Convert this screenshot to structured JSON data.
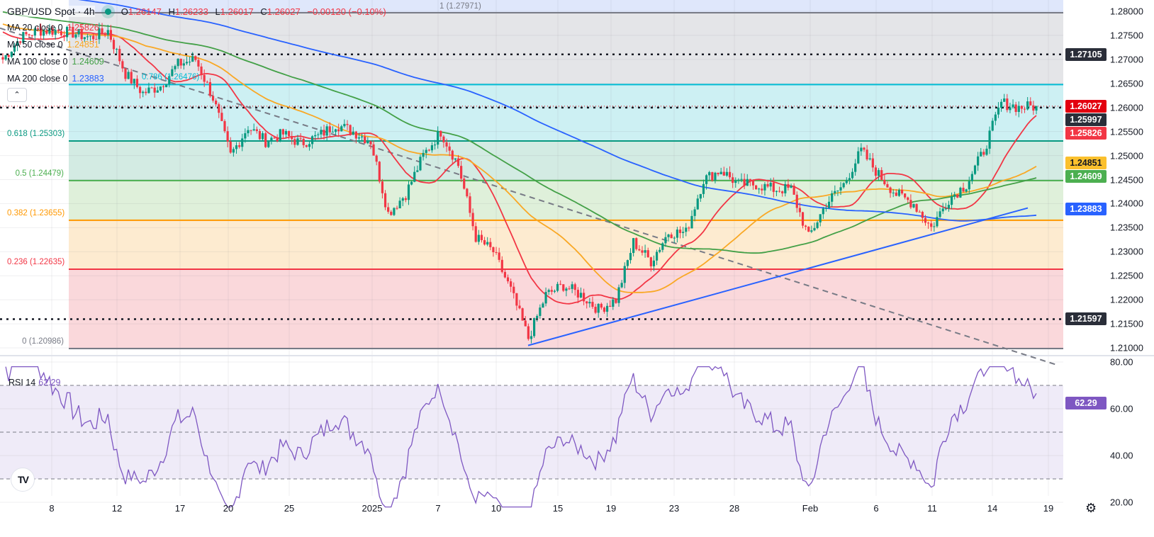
{
  "header": {
    "symbol": "GBP/USD Spot · 4h",
    "open": "O",
    "open_value": "1.26147",
    "high": "H",
    "high_value": "1.26233",
    "low": "L",
    "low_value": "1.26017",
    "close": "C",
    "close_value": "1.26027",
    "change": "−0.00120 (−0.10%)",
    "status_color": "#089981"
  },
  "moving_averages": [
    {
      "label": "MA 20 close 0",
      "value": "1.25826",
      "color": "#f23645"
    },
    {
      "label": "MA 50 close 0",
      "value": "1.24851",
      "color": "#f9a825"
    },
    {
      "label": "MA 100 close 0",
      "value": "1.24609",
      "color": "#43a047"
    },
    {
      "label": "MA 200 close 0",
      "value": "1.23883",
      "color": "#2962ff"
    }
  ],
  "fibonacci": [
    {
      "label": "1 (1.27971)",
      "price": 1.27971,
      "color": "#787b86"
    },
    {
      "label": "0.786 (1.26476)",
      "price": 1.26476,
      "color": "#00bcd4"
    },
    {
      "label": "0.618 (1.25303)",
      "price": 1.25303,
      "color": "#089981"
    },
    {
      "label": "0.5 (1.24479)",
      "price": 1.24479,
      "color": "#4caf50"
    },
    {
      "label": "0.382 (1.23655)",
      "price": 1.23655,
      "color": "#ff9800"
    },
    {
      "label": "0.236 (1.22635)",
      "price": 1.22635,
      "color": "#f23645"
    },
    {
      "label": "0 (1.20986)",
      "price": 1.20986,
      "color": "#787b86"
    }
  ],
  "horizontal_levels": [
    1.27105,
    1.25997,
    1.21597
  ],
  "price_badges": [
    {
      "value": "1.27105",
      "price": 1.27105,
      "bg": "#2a2e39",
      "fg": "#ffffff"
    },
    {
      "value": "1.26027",
      "price": 1.26027,
      "bg": "#e3000f",
      "fg": "#ffffff"
    },
    {
      "value": "1.25997",
      "price": 1.25997,
      "bg": "#2a2e39",
      "fg": "#ffffff"
    },
    {
      "value": "1.25826",
      "price": 1.25826,
      "bg": "#f23645",
      "fg": "#ffffff"
    },
    {
      "value": "1.24851",
      "price": 1.24851,
      "bg": "#fbc02d",
      "fg": "#131722"
    },
    {
      "value": "1.24609",
      "price": 1.24609,
      "bg": "#4caf50",
      "fg": "#ffffff"
    },
    {
      "value": "1.23883",
      "price": 1.23883,
      "bg": "#2962ff",
      "fg": "#ffffff"
    },
    {
      "value": "1.21597",
      "price": 1.21597,
      "bg": "#2a2e39",
      "fg": "#ffffff"
    }
  ],
  "rsi": {
    "label": "RSI 14",
    "value": "62.29",
    "color": "#7e57c2",
    "upper": 70,
    "middle": 50,
    "lower": 30
  },
  "chart_data": {
    "type": "candlestick",
    "title": "GBP/USD Spot · 4h",
    "price_axis": {
      "ylim": [
        1.21,
        1.28
      ],
      "ticks": [
        "1.28000",
        "1.27500",
        "1.27000",
        "1.26500",
        "1.26000",
        "1.25500",
        "1.25000",
        "1.24500",
        "1.24000",
        "1.23500",
        "1.23000",
        "1.22500",
        "1.22000",
        "1.21500",
        "1.21000"
      ]
    },
    "rsi_axis": {
      "ylim": [
        14,
        82
      ],
      "ticks": [
        "80.00",
        "60.00",
        "40.00",
        "20.00"
      ]
    },
    "x_ticks": [
      "8",
      "12",
      "17",
      "20",
      "25",
      "2025",
      "7",
      "10",
      "15",
      "19",
      "23",
      "28",
      "Feb",
      "6",
      "11",
      "14",
      "19"
    ],
    "approx_closes": [
      1.27,
      1.2745,
      1.276,
      1.276,
      1.2755,
      1.2745,
      1.276,
      1.267,
      1.263,
      1.2645,
      1.269,
      1.27,
      1.262,
      1.25,
      1.256,
      1.253,
      1.2545,
      1.2525,
      1.254,
      1.2565,
      1.255,
      1.253,
      1.238,
      1.242,
      1.25,
      1.255,
      1.248,
      1.233,
      1.23,
      1.222,
      1.212,
      1.221,
      1.223,
      1.221,
      1.218,
      1.22,
      1.232,
      1.228,
      1.234,
      1.234,
      1.245,
      1.247,
      1.244,
      1.244,
      1.243,
      1.243,
      1.233,
      1.24,
      1.244,
      1.251,
      1.246,
      1.242,
      1.24,
      1.235,
      1.241,
      1.244,
      1.251,
      1.261,
      1.26,
      1.2603
    ],
    "last_close": 1.26027,
    "grid": true
  }
}
